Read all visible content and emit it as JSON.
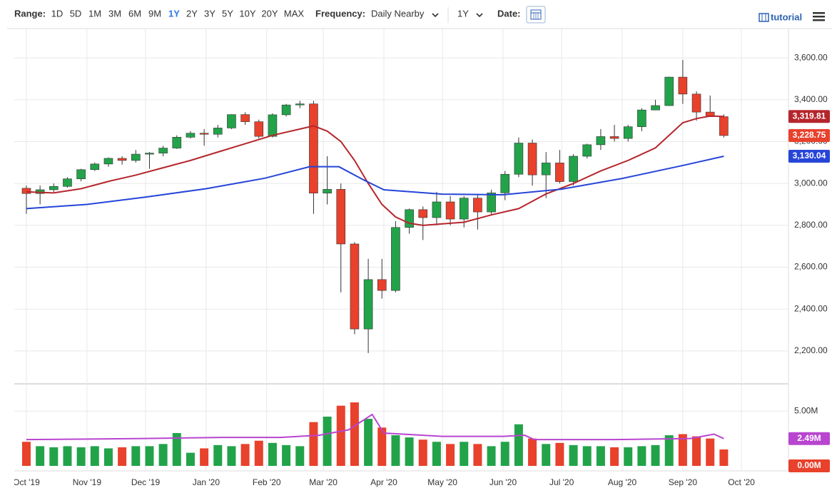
{
  "toolbar": {
    "range_label": "Range:",
    "ranges": [
      "1D",
      "5D",
      "1M",
      "3M",
      "6M",
      "9M",
      "1Y",
      "2Y",
      "3Y",
      "5Y",
      "10Y",
      "20Y",
      "MAX"
    ],
    "active_range": "1Y",
    "frequency_label": "Frequency:",
    "frequency": "Daily Nearby",
    "period": "1Y",
    "date_label": "Date:",
    "tutorial": "tutorial"
  },
  "chart_data": {
    "type": "candlestick",
    "up_color": "#22a34a",
    "down_color": "#e8412c",
    "x": [
      0,
      7,
      14,
      21,
      28,
      35,
      42,
      49,
      56,
      63,
      70,
      77,
      84,
      91,
      98,
      105,
      112,
      119,
      126,
      133,
      140,
      147,
      154,
      161,
      168,
      175,
      182,
      189,
      196,
      203,
      210,
      217,
      224,
      231,
      238,
      245,
      252,
      259,
      266,
      273,
      280,
      287,
      294,
      301,
      308,
      315,
      322,
      329,
      336,
      343,
      350,
      357
    ],
    "open": [
      2977,
      2952,
      2970,
      2986,
      3022,
      3066,
      3093,
      3120,
      3110,
      3140,
      3145,
      3169,
      3221,
      3240,
      3235,
      3265,
      3329,
      3295,
      3225,
      3328,
      3375,
      3380,
      2954,
      2972,
      2711,
      2305,
      2541,
      2489,
      2790,
      2875,
      2837,
      2912,
      2830,
      2930,
      2864,
      2955,
      3044,
      3193,
      3041,
      3098,
      3009,
      3130,
      3185,
      3224,
      3215,
      3271,
      3351,
      3372,
      3508,
      3427,
      3341,
      3319
    ],
    "high": [
      2990,
      2990,
      3000,
      3030,
      3070,
      3100,
      3125,
      3130,
      3160,
      3150,
      3180,
      3230,
      3250,
      3260,
      3280,
      3330,
      3340,
      3305,
      3335,
      3380,
      3395,
      3395,
      3130,
      3000,
      2720,
      2640,
      2640,
      2820,
      2880,
      2890,
      2960,
      2940,
      2940,
      2950,
      2970,
      3060,
      3220,
      3210,
      3150,
      3160,
      3140,
      3190,
      3260,
      3280,
      3280,
      3360,
      3400,
      3510,
      3590,
      3440,
      3420,
      3330
    ],
    "low": [
      2855,
      2900,
      2960,
      2980,
      3010,
      3060,
      3080,
      3090,
      3100,
      3070,
      3130,
      3165,
      3215,
      3180,
      3220,
      3260,
      3280,
      3215,
      3220,
      3320,
      3360,
      2855,
      2900,
      2480,
      2280,
      2190,
      2450,
      2480,
      2760,
      2730,
      2800,
      2800,
      2790,
      2780,
      2850,
      2920,
      3030,
      2990,
      2930,
      3000,
      2990,
      3120,
      3160,
      3200,
      3200,
      3250,
      3350,
      3370,
      3380,
      3300,
      3320,
      3220
    ],
    "close": [
      2952,
      2970,
      2986,
      3022,
      3066,
      3093,
      3120,
      3110,
      3140,
      3145,
      3169,
      3221,
      3240,
      3235,
      3265,
      3329,
      3295,
      3225,
      3328,
      3375,
      3380,
      2954,
      2972,
      2711,
      2305,
      2541,
      2489,
      2790,
      2875,
      2837,
      2912,
      2830,
      2930,
      2864,
      2955,
      3044,
      3193,
      3041,
      3098,
      3009,
      3130,
      3185,
      3224,
      3215,
      3271,
      3351,
      3372,
      3508,
      3427,
      3341,
      3319,
      3229
    ],
    "volume": [
      2.2,
      1.8,
      1.7,
      1.8,
      1.7,
      1.8,
      1.6,
      1.7,
      1.8,
      1.8,
      2.0,
      3.0,
      1.2,
      1.6,
      1.9,
      1.8,
      2.0,
      2.3,
      2.1,
      1.9,
      1.8,
      4.0,
      4.5,
      5.5,
      5.8,
      4.3,
      3.5,
      2.8,
      2.6,
      2.4,
      2.2,
      2.0,
      2.2,
      2.0,
      1.8,
      2.2,
      3.8,
      2.5,
      2.0,
      2.1,
      1.9,
      1.8,
      1.8,
      1.7,
      1.7,
      1.8,
      1.9,
      2.8,
      2.9,
      2.7,
      2.5,
      1.5
    ],
    "overlays": [
      {
        "color": "#b5262c",
        "x": [
          0,
          14,
          28,
          42,
          56,
          70,
          84,
          98,
          112,
          126,
          140,
          147,
          154,
          161,
          168,
          175,
          182,
          189,
          196,
          203,
          210,
          224,
          238,
          252,
          266,
          280,
          294,
          308,
          322,
          336,
          343,
          350,
          357
        ],
        "values": [
          2960,
          2955,
          2975,
          3010,
          3040,
          3075,
          3110,
          3150,
          3190,
          3230,
          3260,
          3275,
          3250,
          3200,
          3110,
          3000,
          2900,
          2840,
          2810,
          2800,
          2805,
          2815,
          2850,
          2880,
          2950,
          3000,
          3060,
          3110,
          3170,
          3290,
          3310,
          3322,
          3320
        ]
      },
      {
        "color": "#2645d8",
        "x": [
          0,
          31,
          61,
          92,
          122,
          145,
          160,
          172,
          183,
          213,
          244,
          274,
          305,
          336,
          357
        ],
        "values": [
          2880,
          2900,
          2935,
          2975,
          3025,
          3080,
          3080,
          3020,
          2970,
          2949,
          2946,
          2973,
          3024,
          3086,
          3130
        ]
      }
    ],
    "volume_overlay": {
      "color": "#b845d0",
      "x": [
        0,
        60,
        100,
        130,
        150,
        165,
        177,
        183,
        213,
        244,
        255,
        260,
        300,
        340,
        352,
        357
      ],
      "values": [
        2.4,
        2.5,
        2.6,
        2.6,
        2.8,
        3.3,
        4.7,
        3.0,
        2.7,
        2.7,
        2.8,
        2.4,
        2.4,
        2.5,
        2.9,
        2.49
      ]
    },
    "xlim": [
      -6.2,
      390.1
    ],
    "ylim": [
      2043,
      3740
    ],
    "y2lim": [
      0,
      7.3
    ],
    "xticks": [
      {
        "value": 0,
        "label": "Oct '19"
      },
      {
        "value": 31,
        "label": "Nov '19"
      },
      {
        "value": 61,
        "label": "Dec '19"
      },
      {
        "value": 92,
        "label": "Jan '20"
      },
      {
        "value": 123,
        "label": "Feb '20"
      },
      {
        "value": 152,
        "label": "Mar '20"
      },
      {
        "value": 183,
        "label": "Apr '20"
      },
      {
        "value": 213,
        "label": "May '20"
      },
      {
        "value": 244,
        "label": "Jun '20"
      },
      {
        "value": 274,
        "label": "Jul '20"
      },
      {
        "value": 305,
        "label": "Aug '20"
      },
      {
        "value": 336,
        "label": "Sep '20"
      },
      {
        "value": 366,
        "label": "Oct '20"
      }
    ],
    "yticks": [
      {
        "value": 2200,
        "label": "2,200.00"
      },
      {
        "value": 2400,
        "label": "2,400.00"
      },
      {
        "value": 2600,
        "label": "2,600.00"
      },
      {
        "value": 2800,
        "label": "2,800.00"
      },
      {
        "value": 3000,
        "label": "3,000.00"
      },
      {
        "value": 3200,
        "label": "3,200.00"
      },
      {
        "value": 3400,
        "label": "3,400.00"
      },
      {
        "value": 3600,
        "label": "3,600.00"
      }
    ],
    "y2ticks": [
      {
        "value": 5,
        "label": "5.00M"
      }
    ],
    "price_tags": [
      {
        "value": 3319.81,
        "label": "3,319.81",
        "color": "#b5262c"
      },
      {
        "value": 3228.75,
        "label": "3,228.75",
        "color": "#e8412c"
      },
      {
        "value": 3130.04,
        "label": "3,130.04",
        "color": "#2645d8"
      }
    ],
    "volume_tags": [
      {
        "value": 2.49,
        "label": "2.49M",
        "color": "#b845d0"
      },
      {
        "value": 0,
        "label": "0.00M",
        "color": "#e8412c"
      }
    ],
    "grid": true
  }
}
